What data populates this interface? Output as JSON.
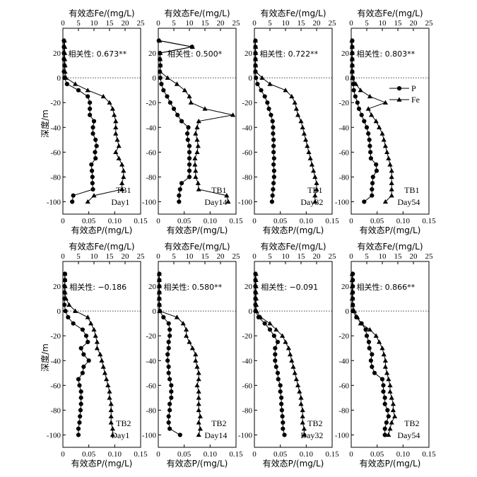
{
  "figure": {
    "p_axis_label": "有效态P/(mg/L)",
    "fe_axis_label": "有效态Fe/(mg/L)",
    "depth_axis_label": "深度/m",
    "legend": [
      {
        "series": "P",
        "marker": "circle"
      },
      {
        "series": "Fe",
        "marker": "triangle"
      }
    ],
    "line_color": "#000000",
    "zero_line_style": "dotted"
  },
  "chart_data": [
    {
      "type": "line",
      "row": 1,
      "site": "TB1",
      "day": "Day1",
      "correlation": "相关性: 0.673**",
      "xlim_P": [
        0,
        0.15
      ],
      "xlim_Fe": [
        0,
        25
      ],
      "ylim": [
        -110,
        40
      ],
      "x_ticks_P": [
        "0",
        "0.05",
        "0.10",
        "0.15"
      ],
      "x_ticks_Fe": [
        "0",
        "5",
        "10",
        "15",
        "20",
        "25"
      ],
      "y_ticks": [
        "20",
        "0",
        "-20",
        "-40",
        "-60",
        "-80",
        "-100"
      ],
      "depth": [
        30,
        25,
        20,
        15,
        10,
        5,
        0,
        -5,
        -10,
        -15,
        -20,
        -25,
        -30,
        -35,
        -40,
        -45,
        -50,
        -55,
        -60,
        -65,
        -70,
        -75,
        -80,
        -85,
        -90,
        -95,
        -100
      ],
      "P": [
        0.002,
        0.002,
        0.002,
        0.002,
        0.003,
        0.002,
        0.003,
        0.008,
        0.03,
        0.048,
        0.052,
        0.052,
        0.052,
        0.06,
        0.058,
        0.058,
        0.063,
        0.065,
        0.062,
        0.063,
        0.055,
        0.056,
        0.057,
        0.057,
        0.058,
        0.02,
        0.018
      ],
      "Fe": [
        0.5,
        0.6,
        0.6,
        0.6,
        0.7,
        0.7,
        1.0,
        4.0,
        8.0,
        13.0,
        15.0,
        16.0,
        16.5,
        17.0,
        17.0,
        17.0,
        17.5,
        18.0,
        17.0,
        18.0,
        19.0,
        19.5,
        19.5,
        19.0,
        19.0,
        10.0,
        8.0
      ]
    },
    {
      "type": "line",
      "row": 1,
      "site": "TB1",
      "day": "Day14",
      "correlation": "相关性: 0.500*",
      "xlim_P": [
        0,
        0.15
      ],
      "xlim_Fe": [
        0,
        25
      ],
      "ylim": [
        -110,
        40
      ],
      "x_ticks_P": [
        "0",
        "0.05",
        "0.10",
        "0.15"
      ],
      "x_ticks_Fe": [
        "0",
        "5",
        "10",
        "15",
        "20",
        "25"
      ],
      "y_ticks": [
        "20",
        "0",
        "-20",
        "-40",
        "-60",
        "-80",
        "-100"
      ],
      "depth": [
        30,
        25,
        20,
        15,
        10,
        5,
        0,
        -5,
        -10,
        -15,
        -20,
        -25,
        -30,
        -35,
        -40,
        -45,
        -50,
        -55,
        -60,
        -65,
        -70,
        -75,
        -80,
        -85,
        -90,
        -95,
        -100
      ],
      "P": [
        0.001,
        0.065,
        0.003,
        0.003,
        0.004,
        0.003,
        0.004,
        0.006,
        0.01,
        0.017,
        0.023,
        0.03,
        0.037,
        0.045,
        0.058,
        0.056,
        0.057,
        0.06,
        0.06,
        0.06,
        0.06,
        0.06,
        0.06,
        0.045,
        0.042,
        0.04,
        0.04
      ],
      "Fe": [
        0.4,
        11.0,
        0.6,
        0.6,
        0.6,
        0.6,
        3.0,
        6.0,
        8.5,
        10.0,
        10.5,
        15.0,
        24.0,
        13.0,
        12.5,
        12.0,
        12.5,
        12.8,
        12.5,
        11.8,
        11.8,
        12.0,
        12.0,
        12.8,
        13.0,
        22.0,
        22.5
      ]
    },
    {
      "type": "line",
      "row": 1,
      "site": "TB1",
      "day": "Day32",
      "correlation": "相关性: 0.722**",
      "xlim_P": [
        0,
        0.15
      ],
      "xlim_Fe": [
        0,
        25
      ],
      "ylim": [
        -110,
        40
      ],
      "x_ticks_P": [
        "0",
        "0.05",
        "0.10",
        "0.15"
      ],
      "x_ticks_Fe": [
        "0",
        "5",
        "10",
        "15",
        "20",
        "25"
      ],
      "y_ticks": [
        "20",
        "0",
        "-20",
        "-40",
        "-60",
        "-80",
        "-100"
      ],
      "depth": [
        30,
        25,
        20,
        15,
        10,
        5,
        0,
        -5,
        -10,
        -15,
        -20,
        -25,
        -30,
        -35,
        -40,
        -45,
        -50,
        -55,
        -60,
        -65,
        -70,
        -75,
        -80,
        -85,
        -90,
        -95,
        -100
      ],
      "P": [
        0.002,
        0.002,
        0.002,
        0.002,
        0.002,
        0.002,
        0.003,
        0.006,
        0.013,
        0.02,
        0.025,
        0.028,
        0.032,
        0.035,
        0.036,
        0.036,
        0.037,
        0.037,
        0.037,
        0.038,
        0.037,
        0.038,
        0.038,
        0.037,
        0.036,
        0.035,
        0.034
      ],
      "Fe": [
        0.3,
        0.4,
        0.4,
        0.4,
        0.4,
        0.4,
        2.5,
        5.0,
        10.0,
        12.0,
        13.0,
        13.5,
        14.0,
        15.0,
        15.5,
        16.0,
        16.5,
        17.0,
        17.5,
        18.0,
        18.5,
        19.0,
        19.5,
        20.0,
        20.0,
        19.5,
        19.5
      ]
    },
    {
      "type": "line",
      "row": 1,
      "site": "TB1",
      "day": "Day54",
      "correlation": "相关性: 0.803**",
      "xlim_P": [
        0,
        0.15
      ],
      "xlim_Fe": [
        0,
        25
      ],
      "ylim": [
        -110,
        40
      ],
      "x_ticks_P": [
        "0",
        "0.05",
        "0.10",
        "0.15"
      ],
      "x_ticks_Fe": [
        "0",
        "5",
        "10",
        "15",
        "20",
        "25"
      ],
      "y_ticks": [
        "20",
        "0",
        "-20",
        "-40",
        "-60",
        "-80",
        "-100"
      ],
      "depth": [
        30,
        25,
        20,
        15,
        10,
        5,
        0,
        -5,
        -10,
        -15,
        -20,
        -25,
        -30,
        -35,
        -40,
        -45,
        -50,
        -55,
        -60,
        -65,
        -70,
        -75,
        -80,
        -85,
        -90,
        -95,
        -100
      ],
      "P": [
        0.002,
        0.002,
        0.002,
        0.002,
        0.002,
        0.002,
        0.003,
        0.004,
        0.005,
        0.008,
        0.012,
        0.015,
        0.02,
        0.025,
        0.03,
        0.033,
        0.035,
        0.036,
        0.037,
        0.038,
        0.048,
        0.049,
        0.042,
        0.041,
        0.04,
        0.04,
        0.025
      ],
      "Fe": [
        0.2,
        0.3,
        0.3,
        0.3,
        0.3,
        0.3,
        0.4,
        1.5,
        3.0,
        6.0,
        11.0,
        5.5,
        6.5,
        8.0,
        9.0,
        10.0,
        10.5,
        11.0,
        11.5,
        12.0,
        12.5,
        13.0,
        13.0,
        13.0,
        13.0,
        13.0,
        11.0
      ]
    },
    {
      "type": "line",
      "row": 2,
      "site": "TB2",
      "day": "Day1",
      "correlation": "相关性: −0.186",
      "xlim_P": [
        0,
        0.15
      ],
      "xlim_Fe": [
        0,
        25
      ],
      "ylim": [
        -110,
        40
      ],
      "x_ticks_P": [
        "0",
        "0.05",
        "0.10",
        "0.15"
      ],
      "x_ticks_Fe": [
        "0",
        "5",
        "10",
        "15",
        "20",
        "25"
      ],
      "y_ticks": [
        "20",
        "0",
        "-20",
        "-40",
        "-60",
        "-80",
        "-100"
      ],
      "depth": [
        30,
        25,
        20,
        15,
        10,
        5,
        0,
        -5,
        -10,
        -15,
        -20,
        -25,
        -30,
        -35,
        -40,
        -45,
        -50,
        -55,
        -60,
        -65,
        -70,
        -75,
        -80,
        -85,
        -90,
        -95,
        -100
      ],
      "P": [
        0.004,
        0.004,
        0.003,
        0.003,
        0.003,
        0.003,
        0.005,
        0.01,
        0.02,
        0.038,
        0.045,
        0.048,
        0.035,
        0.04,
        0.05,
        0.04,
        0.038,
        0.03,
        0.032,
        0.035,
        0.035,
        0.035,
        0.034,
        0.033,
        0.032,
        0.03,
        0.03
      ],
      "Fe": [
        0.6,
        0.6,
        0.7,
        0.7,
        1.0,
        2.0,
        4.0,
        8.0,
        9.0,
        10.0,
        10.5,
        11.0,
        11.0,
        12.0,
        12.5,
        13.0,
        13.5,
        14.0,
        14.5,
        15.0,
        15.0,
        15.5,
        15.5,
        15.5,
        15.5,
        16.0,
        16.0
      ]
    },
    {
      "type": "line",
      "row": 2,
      "site": "TB2",
      "day": "Day14",
      "correlation": "相关性: 0.580**",
      "xlim_P": [
        0,
        0.15
      ],
      "xlim_Fe": [
        0,
        25
      ],
      "ylim": [
        -110,
        40
      ],
      "x_ticks_P": [
        "0",
        "0.05",
        "0.10",
        "0.15"
      ],
      "x_ticks_Fe": [
        "0",
        "5",
        "10",
        "15",
        "20",
        "25"
      ],
      "y_ticks": [
        "20",
        "0",
        "-20",
        "-40",
        "-60",
        "-80",
        "-100"
      ],
      "depth": [
        30,
        25,
        20,
        15,
        10,
        5,
        0,
        -5,
        -10,
        -15,
        -20,
        -25,
        -30,
        -35,
        -40,
        -45,
        -50,
        -55,
        -60,
        -65,
        -70,
        -75,
        -80,
        -85,
        -90,
        -95,
        -100
      ],
      "P": [
        0.002,
        0.002,
        0.002,
        0.002,
        0.002,
        0.002,
        0.003,
        0.01,
        0.02,
        0.022,
        0.022,
        0.02,
        0.02,
        0.018,
        0.018,
        0.02,
        0.02,
        0.022,
        0.025,
        0.025,
        0.025,
        0.022,
        0.022,
        0.02,
        0.02,
        0.022,
        0.042
      ],
      "Fe": [
        0.3,
        0.3,
        0.3,
        0.3,
        0.3,
        0.4,
        0.4,
        6.0,
        8.0,
        9.0,
        9.0,
        10.0,
        11.0,
        12.0,
        12.0,
        12.5,
        13.0,
        13.0,
        12.5,
        13.0,
        13.0,
        13.0,
        13.0,
        13.5,
        13.0,
        13.5,
        13.0
      ]
    },
    {
      "type": "line",
      "row": 2,
      "site": "TB2",
      "day": "Day32",
      "correlation": "相关性: −0.091",
      "xlim_P": [
        0,
        0.15
      ],
      "xlim_Fe": [
        0,
        25
      ],
      "ylim": [
        -110,
        40
      ],
      "x_ticks_P": [
        "0",
        "0.05",
        "0.10",
        "0.15"
      ],
      "x_ticks_Fe": [
        "0",
        "5",
        "10",
        "15",
        "20",
        "25"
      ],
      "y_ticks": [
        "20",
        "0",
        "-20",
        "-40",
        "-60",
        "-80",
        "-100"
      ],
      "depth": [
        30,
        25,
        20,
        15,
        10,
        5,
        0,
        -5,
        -10,
        -15,
        -20,
        -25,
        -30,
        -35,
        -40,
        -45,
        -50,
        -55,
        -60,
        -65,
        -70,
        -75,
        -80,
        -85,
        -90,
        -95,
        -100
      ],
      "P": [
        0.002,
        0.002,
        0.002,
        0.002,
        0.002,
        0.002,
        0.002,
        0.008,
        0.02,
        0.03,
        0.038,
        0.045,
        0.04,
        0.04,
        0.04,
        0.042,
        0.045,
        0.046,
        0.05,
        0.05,
        0.052,
        0.052,
        0.053,
        0.054,
        0.055,
        0.055,
        0.058
      ],
      "Fe": [
        0.5,
        0.5,
        0.5,
        0.5,
        0.6,
        0.6,
        0.7,
        2.0,
        5.0,
        7.0,
        9.0,
        10.0,
        11.0,
        11.5,
        12.0,
        12.5,
        13.0,
        13.5,
        14.0,
        14.5,
        15.0,
        15.0,
        15.5,
        15.5,
        15.5,
        16.0,
        16.0
      ]
    },
    {
      "type": "line",
      "row": 2,
      "site": "TB2",
      "day": "Day54",
      "correlation": "相关性: 0.866**",
      "xlim_P": [
        0,
        0.15
      ],
      "xlim_Fe": [
        0,
        25
      ],
      "ylim": [
        -110,
        40
      ],
      "x_ticks_P": [
        "0",
        "0.05",
        "0.10",
        "0.15"
      ],
      "x_ticks_Fe": [
        "0",
        "5",
        "10",
        "15",
        "20",
        "25"
      ],
      "y_ticks": [
        "20",
        "0",
        "-20",
        "-40",
        "-60",
        "-80",
        "-100"
      ],
      "depth": [
        30,
        25,
        20,
        15,
        10,
        5,
        0,
        -5,
        -10,
        -15,
        -20,
        -25,
        -30,
        -35,
        -40,
        -45,
        -50,
        -55,
        -60,
        -65,
        -70,
        -75,
        -80,
        -85,
        -90,
        -95,
        -100
      ],
      "P": [
        0.003,
        0.003,
        0.003,
        0.003,
        0.003,
        0.003,
        0.003,
        0.01,
        0.02,
        0.028,
        0.03,
        0.034,
        0.035,
        0.04,
        0.038,
        0.04,
        0.045,
        0.06,
        0.062,
        0.062,
        0.065,
        0.065,
        0.07,
        0.072,
        0.068,
        0.065,
        0.065
      ],
      "Fe": [
        0.3,
        0.3,
        0.3,
        0.3,
        0.3,
        0.5,
        1.0,
        2.0,
        3.0,
        6.0,
        8.0,
        9.0,
        10.0,
        10.5,
        11.0,
        11.0,
        11.5,
        12.0,
        12.5,
        12.5,
        13.0,
        13.5,
        13.5,
        14.0,
        13.0,
        12.5,
        12.0
      ]
    }
  ]
}
